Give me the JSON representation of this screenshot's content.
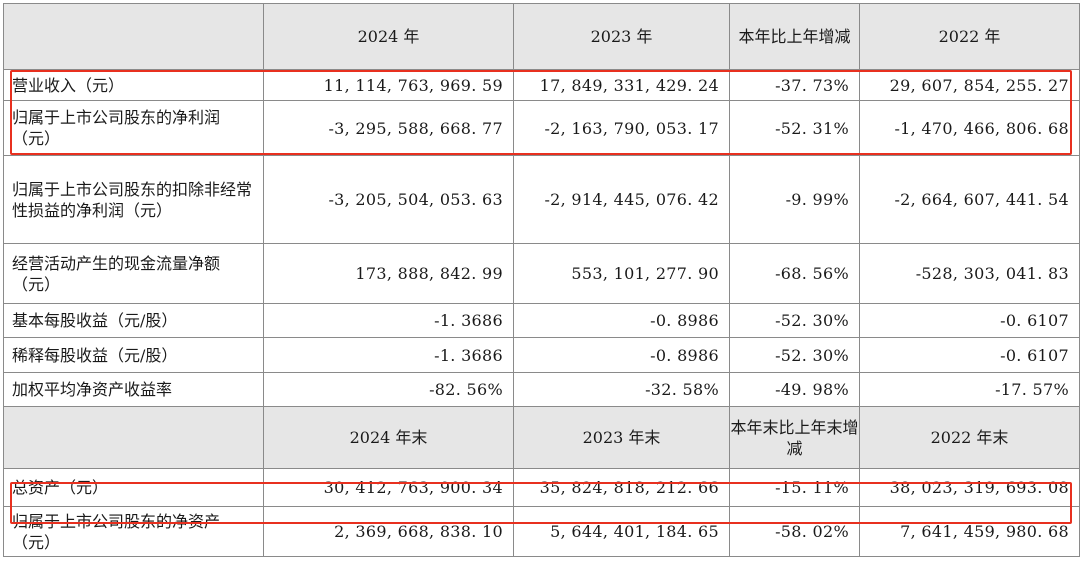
{
  "header1": {
    "col1": "2024 年",
    "col2": "2023 年",
    "col3": "本年比上年增减",
    "col4": "2022 年"
  },
  "header2": {
    "col1": "2024 年末",
    "col2": "2023 年末",
    "col3": "本年末比上年末增减",
    "col4": "2022 年末"
  },
  "rows": [
    {
      "label": "营业收入（元）",
      "v2024": "11, 114, 763, 969. 59",
      "v2023": "17, 849, 331, 429. 24",
      "change": "-37. 73%",
      "v2022": "29, 607, 854, 255. 27"
    },
    {
      "label": "归属于上市公司股东的净利润（元）",
      "v2024": "-3, 295, 588, 668. 77",
      "v2023": "-2, 163, 790, 053. 17",
      "change": "-52. 31%",
      "v2022": "-1, 470, 466, 806. 68"
    },
    {
      "label": "归属于上市公司股东的扣除非经常性损益的净利润（元）",
      "v2024": "-3, 205, 504, 053. 63",
      "v2023": "-2, 914, 445, 076. 42",
      "change": "-9. 99%",
      "v2022": "-2, 664, 607, 441. 54"
    },
    {
      "label": "经营活动产生的现金流量净额（元）",
      "v2024": "173, 888, 842. 99",
      "v2023": "553, 101, 277. 90",
      "change": "-68. 56%",
      "v2022": "-528, 303, 041. 83"
    },
    {
      "label": "基本每股收益（元/股）",
      "v2024": "-1. 3686",
      "v2023": "-0. 8986",
      "change": "-52. 30%",
      "v2022": "-0. 6107"
    },
    {
      "label": "稀释每股收益（元/股）",
      "v2024": "-1. 3686",
      "v2023": "-0. 8986",
      "change": "-52. 30%",
      "v2022": "-0. 6107"
    },
    {
      "label": "加权平均净资产收益率",
      "v2024": "-82. 56%",
      "v2023": "-32. 58%",
      "change": "-49. 98%",
      "v2022": "-17. 57%"
    }
  ],
  "rows2": [
    {
      "label": "总资产（元）",
      "v2024": "30, 412, 763, 900. 34",
      "v2023": "35, 824, 818, 212. 66",
      "change": "-15. 11%",
      "v2022": "38, 023, 319, 693. 08"
    },
    {
      "label": "归属于上市公司股东的净资产（元）",
      "v2024": "2, 369, 668, 838. 10",
      "v2023": "5, 644, 401, 184. 65",
      "change": "-58. 02%",
      "v2022": "7, 641, 459, 980. 68"
    }
  ],
  "highlight_color": "#e8301f",
  "header_bg": "#e6e6e6"
}
